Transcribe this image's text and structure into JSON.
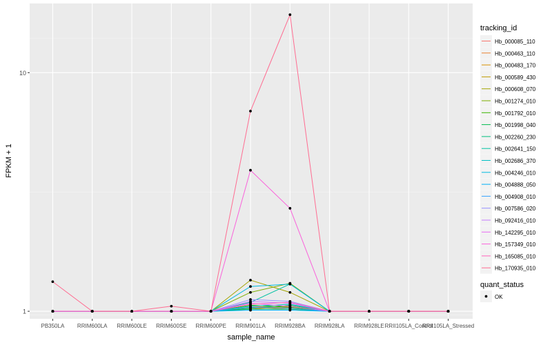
{
  "chart_data": {
    "type": "line",
    "title": "",
    "xlabel": "sample_name",
    "ylabel": "FPKM + 1",
    "y_scale": "log10",
    "ylim": [
      0.93,
      19.5
    ],
    "y_ticks": [
      1,
      10
    ],
    "y_tick_labels": [
      "1",
      "10"
    ],
    "grid": true,
    "legend_position": "right",
    "categories": [
      "PB350LA",
      "RRIM600LA",
      "RRIM600LE",
      "RRIM600SE",
      "RRIM600PE",
      "RRIM901LA",
      "RRIM928BA",
      "RRIM928LA",
      "RRIM928LE",
      "RRII105LA_Control",
      "RRII105LA_Stressed"
    ],
    "legend": {
      "title": "tracking_id",
      "status_title": "quant_status",
      "status_items": [
        "OK"
      ]
    },
    "series": [
      {
        "name": "Hb_000085_110",
        "color": "#F8766D",
        "values": [
          1,
          1,
          1,
          1,
          1,
          1.03,
          1.04,
          1,
          1,
          1,
          1
        ]
      },
      {
        "name": "Hb_000463_110",
        "color": "#EA8331",
        "values": [
          1,
          1,
          1,
          1,
          1,
          1.05,
          1.03,
          1,
          1,
          1,
          1
        ]
      },
      {
        "name": "Hb_000483_170",
        "color": "#D89000",
        "values": [
          1,
          1,
          1,
          1,
          1,
          1.02,
          1.05,
          1,
          1,
          1,
          1
        ]
      },
      {
        "name": "Hb_000589_430",
        "color": "#C09B00",
        "values": [
          1,
          1,
          1,
          1,
          1,
          1.04,
          1.02,
          1,
          1,
          1,
          1
        ]
      },
      {
        "name": "Hb_000608_070",
        "color": "#A3A500",
        "values": [
          1,
          1,
          1,
          1,
          1,
          1.35,
          1.2,
          1,
          1,
          1,
          1
        ]
      },
      {
        "name": "Hb_001274_010",
        "color": "#7CAE00",
        "values": [
          1,
          1,
          1,
          1,
          1,
          1.2,
          1.31,
          1,
          1,
          1,
          1
        ]
      },
      {
        "name": "Hb_001792_010",
        "color": "#39B600",
        "values": [
          1,
          1,
          1,
          1,
          1,
          1.06,
          1.04,
          1,
          1,
          1,
          1
        ]
      },
      {
        "name": "Hb_001998_040",
        "color": "#00BB4E",
        "values": [
          1,
          1,
          1,
          1,
          1,
          1.03,
          1.06,
          1,
          1,
          1,
          1
        ]
      },
      {
        "name": "Hb_002260_230",
        "color": "#00BF7D",
        "values": [
          1,
          1,
          1,
          1,
          1,
          1.02,
          1.02,
          1,
          1,
          1,
          1
        ]
      },
      {
        "name": "Hb_002641_150",
        "color": "#00C1A3",
        "values": [
          1,
          1,
          1,
          1,
          1,
          1.09,
          1.3,
          1,
          1,
          1,
          1
        ]
      },
      {
        "name": "Hb_002686_370",
        "color": "#00BFC4",
        "values": [
          1,
          1,
          1,
          1,
          1,
          1.05,
          1.07,
          1,
          1,
          1,
          1
        ]
      },
      {
        "name": "Hb_004246_010",
        "color": "#00BAE0",
        "values": [
          1,
          1,
          1,
          1,
          1,
          1.27,
          1.3,
          1,
          1,
          1,
          1
        ]
      },
      {
        "name": "Hb_004888_050",
        "color": "#00B0F6",
        "values": [
          1,
          1,
          1,
          1,
          1,
          1.01,
          1.01,
          1,
          1,
          1,
          1
        ]
      },
      {
        "name": "Hb_004908_010",
        "color": "#35A2FF",
        "values": [
          1,
          1,
          1,
          1,
          1,
          1.04,
          1.03,
          1,
          1,
          1,
          1
        ]
      },
      {
        "name": "Hb_007586_020",
        "color": "#9590FF",
        "values": [
          1,
          1,
          1,
          1,
          1,
          1.12,
          1.1,
          1,
          1,
          1,
          1
        ]
      },
      {
        "name": "Hb_092416_010",
        "color": "#C77CFF",
        "values": [
          1,
          1,
          1,
          1,
          1,
          1.1,
          1.08,
          1,
          1,
          1,
          1
        ]
      },
      {
        "name": "Hb_142295_010",
        "color": "#E76BF3",
        "values": [
          1,
          1,
          1,
          1,
          1,
          1.08,
          1.05,
          1,
          1,
          1,
          1
        ]
      },
      {
        "name": "Hb_157349_010",
        "color": "#FA62DB",
        "values": [
          1,
          1,
          1,
          1,
          1,
          3.9,
          2.7,
          1,
          1,
          1,
          1
        ]
      },
      {
        "name": "Hb_165085_010",
        "color": "#FF62BC",
        "values": [
          1,
          1,
          1,
          1,
          1,
          1.07,
          1.09,
          1,
          1,
          1,
          1
        ]
      },
      {
        "name": "Hb_170935_010",
        "color": "#FF6C91",
        "values": [
          1.33,
          1,
          1,
          1.05,
          1,
          6.9,
          17.5,
          1,
          1,
          1,
          1
        ]
      }
    ]
  }
}
